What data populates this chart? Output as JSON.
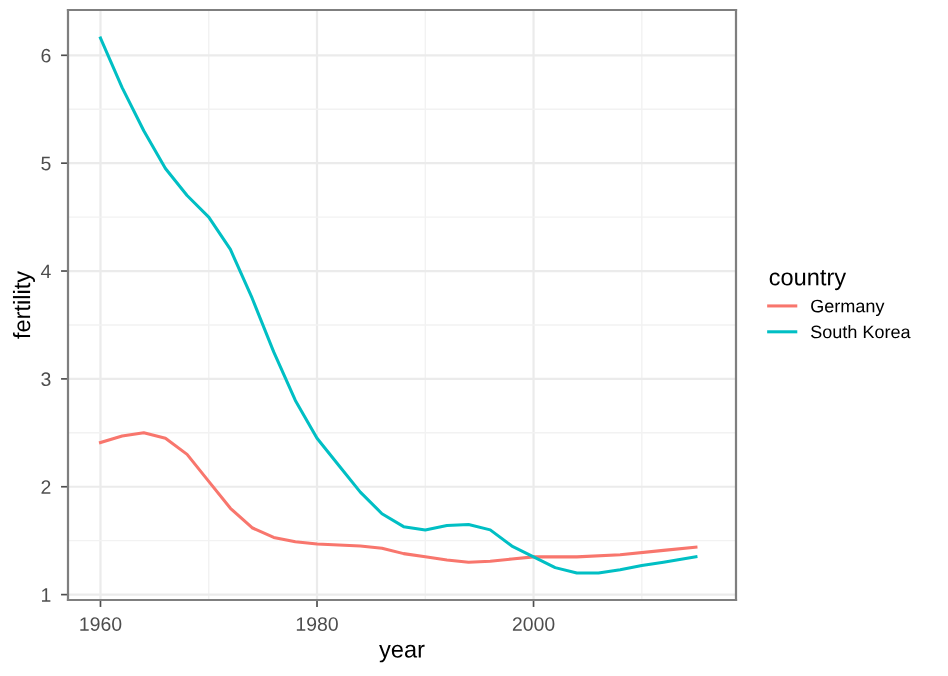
{
  "chart_data": {
    "type": "line",
    "xlabel": "year",
    "ylabel": "fertility",
    "legend_title": "country",
    "legend": "right",
    "grid": true,
    "xlim": [
      1957.0,
      2018.7
    ],
    "xticks": [
      1960,
      1980,
      2000
    ],
    "ylim": [
      0.95,
      6.42
    ],
    "yticks": [
      1,
      2,
      3,
      4,
      5,
      6
    ],
    "series": [
      {
        "name": "Germany",
        "color": "#f8766d",
        "x": [
          1960,
          1962,
          1964,
          1966,
          1968,
          1970,
          1972,
          1974,
          1976,
          1978,
          1980,
          1984,
          1986,
          1988,
          1990,
          1992,
          1994,
          1996,
          1998,
          2000,
          2004,
          2008,
          2012,
          2015
        ],
        "values": [
          2.41,
          2.47,
          2.5,
          2.45,
          2.3,
          2.05,
          1.8,
          1.62,
          1.53,
          1.49,
          1.47,
          1.45,
          1.43,
          1.38,
          1.35,
          1.32,
          1.3,
          1.31,
          1.33,
          1.35,
          1.35,
          1.37,
          1.41,
          1.44
        ]
      },
      {
        "name": "South Korea",
        "color": "#00bfc4",
        "x": [
          1960,
          1962,
          1964,
          1966,
          1968,
          1970,
          1972,
          1974,
          1976,
          1978,
          1980,
          1982,
          1984,
          1986,
          1988,
          1990,
          1992,
          1994,
          1996,
          1998,
          2000,
          2002,
          2004,
          2006,
          2008,
          2010,
          2012,
          2015
        ],
        "values": [
          6.16,
          5.7,
          5.3,
          4.95,
          4.7,
          4.5,
          4.2,
          3.75,
          3.25,
          2.8,
          2.45,
          2.2,
          1.95,
          1.75,
          1.63,
          1.6,
          1.64,
          1.65,
          1.6,
          1.45,
          1.35,
          1.25,
          1.2,
          1.2,
          1.23,
          1.27,
          1.3,
          1.35
        ]
      }
    ]
  }
}
